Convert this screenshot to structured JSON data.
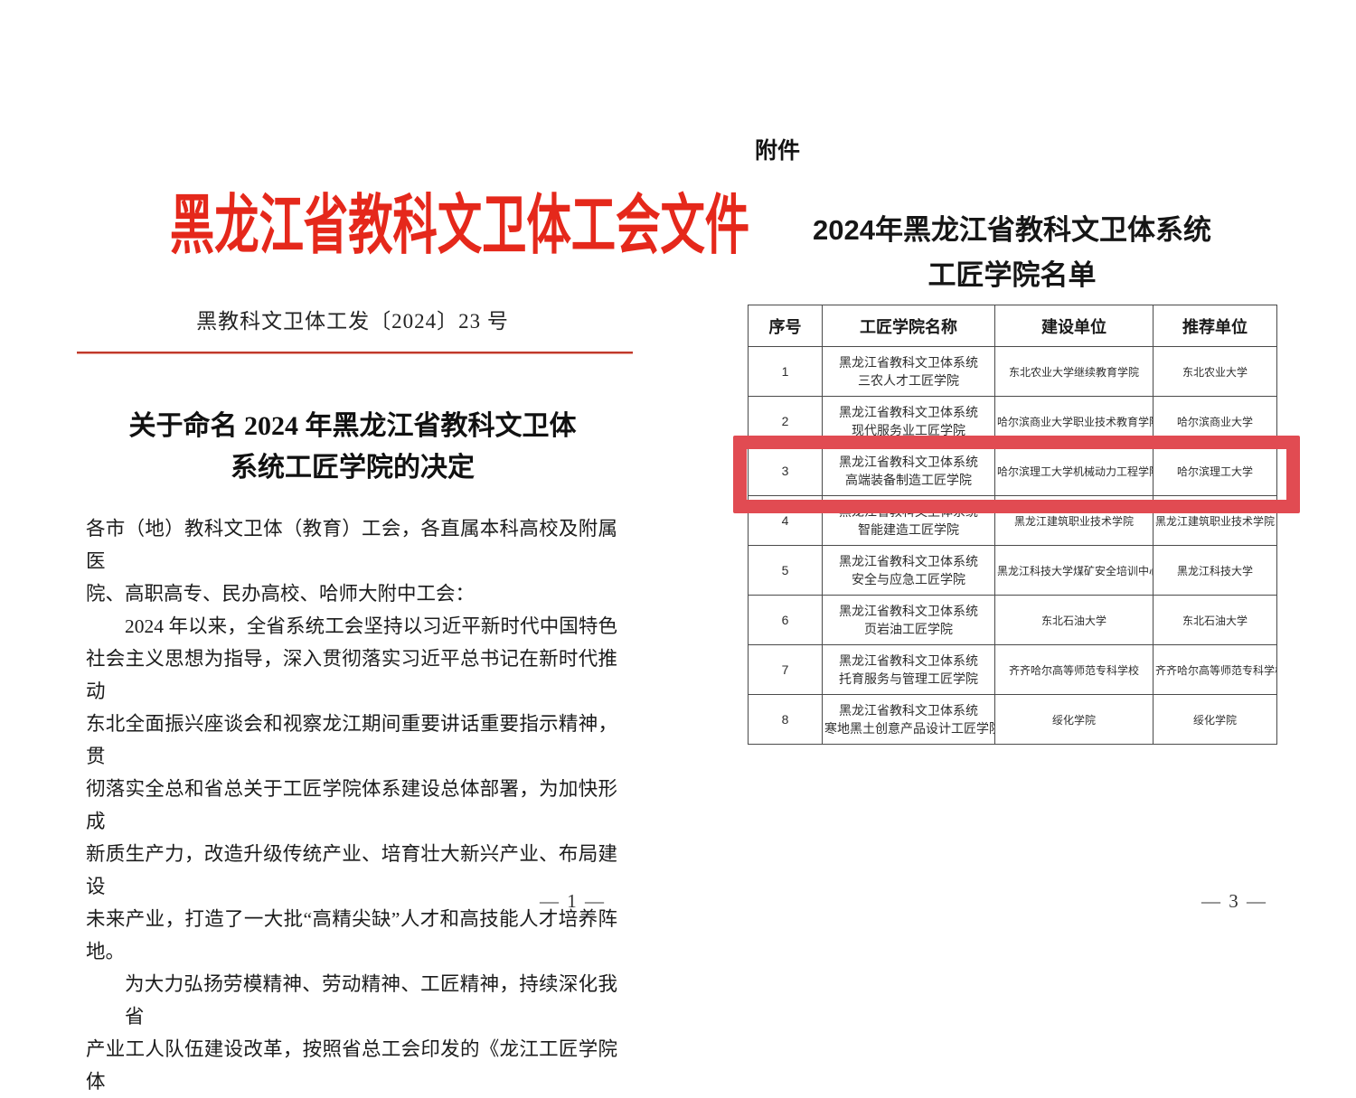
{
  "left_page": {
    "header_title": "黑龙江省教科文卫体工会文件",
    "doc_number": "黑教科文卫体工发〔2024〕23 号",
    "title_line1": "关于命名 2024 年黑龙江省教科文卫体",
    "title_line2": "系统工匠学院的决定",
    "body_lines": [
      {
        "text": "各市（地）教科文卫体（教育）工会，各直属本科高校及附属医",
        "indent": false,
        "fill": true
      },
      {
        "text": "院、高职高专、民办高校、哈师大附中工会：",
        "indent": false,
        "fill": false
      },
      {
        "text": "2024 年以来，全省系统工会坚持以习近平新时代中国特色",
        "indent": true,
        "fill": true
      },
      {
        "text": "社会主义思想为指导，深入贯彻落实习近平总书记在新时代推动",
        "indent": false,
        "fill": true
      },
      {
        "text": "东北全面振兴座谈会和视察龙江期间重要讲话重要指示精神，贯",
        "indent": false,
        "fill": true
      },
      {
        "text": "彻落实全总和省总关于工匠学院体系建设总体部署，为加快形成",
        "indent": false,
        "fill": true
      },
      {
        "text": "新质生产力，改造升级传统产业、培育壮大新兴产业、布局建设",
        "indent": false,
        "fill": true
      },
      {
        "text": "未来产业，打造了一大批“高精尖缺”人才和高技能人才培养阵",
        "indent": false,
        "fill": true
      },
      {
        "text": "地。",
        "indent": false,
        "fill": false
      },
      {
        "text": "为大力弘扬劳模精神、劳动精神、工匠精神，持续深化我省",
        "indent": true,
        "fill": true
      },
      {
        "text": "产业工人队伍建设改革，按照省总工会印发的《龙江工匠学院体",
        "indent": false,
        "fill": true
      }
    ],
    "page_number": "— 1 —"
  },
  "right_page": {
    "attachment_label": "附件",
    "title_line1": "2024年黑龙江省教科文卫体系统",
    "title_line2": "工匠学院名单",
    "table": {
      "columns": [
        "序号",
        "工匠学院名称",
        "建设单位",
        "推荐单位"
      ],
      "rows": [
        {
          "seq": "1",
          "name_line1": "黑龙江省教科文卫体系统",
          "name_line2": "三农人才工匠学院",
          "builder": "东北农业大学继续教育学院",
          "recommender": "东北农业大学",
          "highlighted": false
        },
        {
          "seq": "2",
          "name_line1": "黑龙江省教科文卫体系统",
          "name_line2": "现代服务业工匠学院",
          "builder": "哈尔滨商业大学职业技术教育学院",
          "recommender": "哈尔滨商业大学",
          "highlighted": false
        },
        {
          "seq": "3",
          "name_line1": "黑龙江省教科文卫体系统",
          "name_line2": "高端装备制造工匠学院",
          "builder": "哈尔滨理工大学机械动力工程学院",
          "recommender": "哈尔滨理工大学",
          "highlighted": true
        },
        {
          "seq": "4",
          "name_line1": "黑龙江省教科文卫体系统",
          "name_line2": "智能建造工匠学院",
          "builder": "黑龙江建筑职业技术学院",
          "recommender": "黑龙江建筑职业技术学院",
          "highlighted": false
        },
        {
          "seq": "5",
          "name_line1": "黑龙江省教科文卫体系统",
          "name_line2": "安全与应急工匠学院",
          "builder": "黑龙江科技大学煤矿安全培训中心",
          "recommender": "黑龙江科技大学",
          "highlighted": false
        },
        {
          "seq": "6",
          "name_line1": "黑龙江省教科文卫体系统",
          "name_line2": "页岩油工匠学院",
          "builder": "东北石油大学",
          "recommender": "东北石油大学",
          "highlighted": false
        },
        {
          "seq": "7",
          "name_line1": "黑龙江省教科文卫体系统",
          "name_line2": "托育服务与管理工匠学院",
          "builder": "齐齐哈尔高等师范专科学校",
          "recommender": "齐齐哈尔高等师范专科学校",
          "highlighted": false
        },
        {
          "seq": "8",
          "name_line1": "黑龙江省教科文卫体系统",
          "name_line2": "寒地黑土创意产品设计工匠学院",
          "builder": "绥化学院",
          "recommender": "绥化学院",
          "highlighted": false
        }
      ]
    },
    "page_number": "— 3 —"
  },
  "colors": {
    "header_red": "#e5281b",
    "rule_red": "#c0392b",
    "highlight_red": "#e14b52"
  }
}
